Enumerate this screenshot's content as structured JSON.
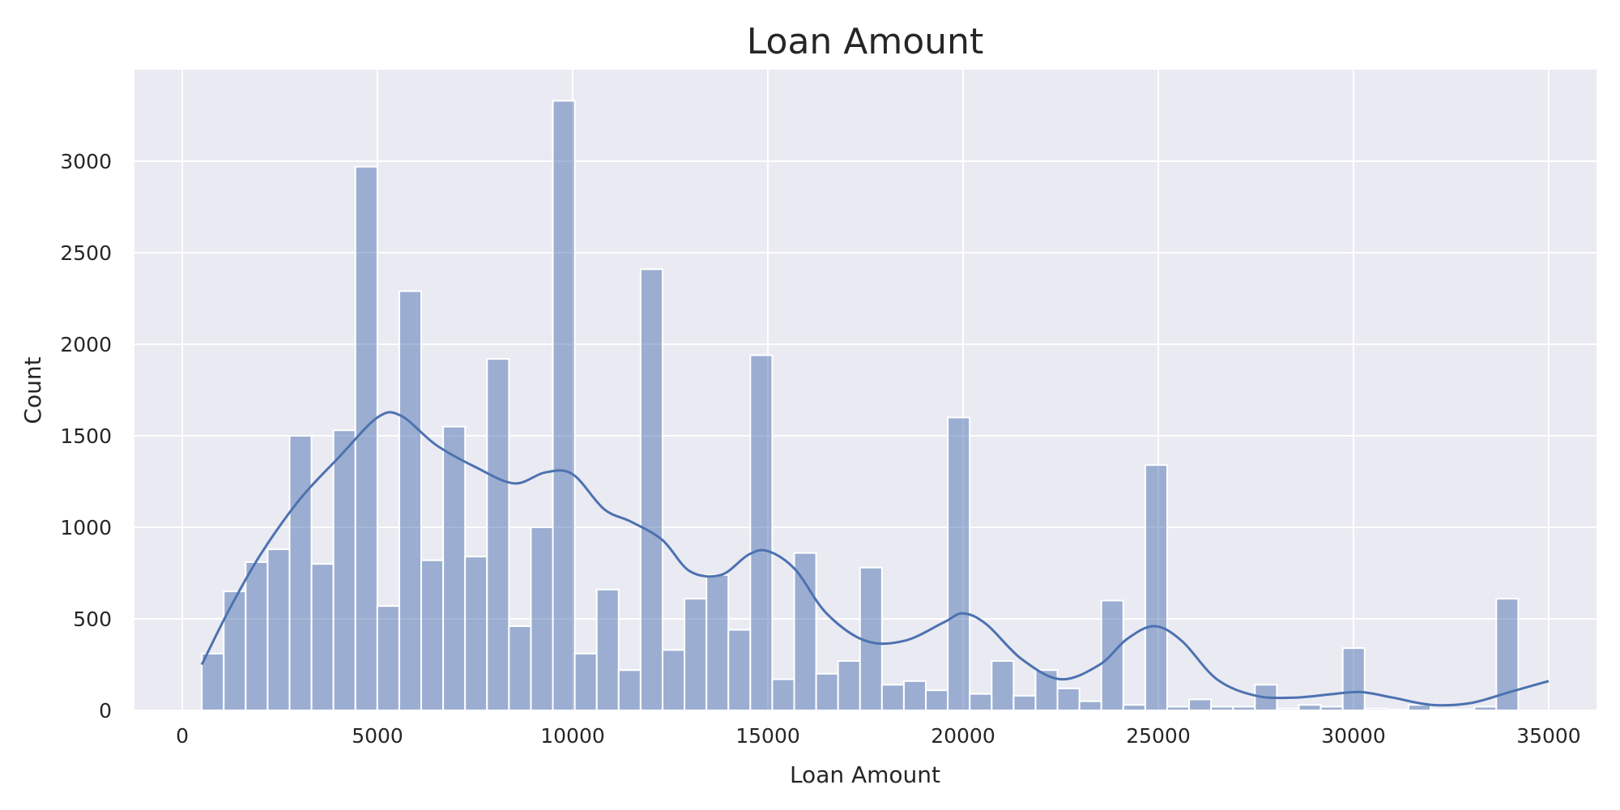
{
  "chart_data": {
    "type": "histogram",
    "title": "Loan Amount",
    "xlabel": "Loan Amount",
    "ylabel": "Count",
    "xlim": [
      -1225,
      36225
    ],
    "ylim": [
      0,
      3500
    ],
    "xticks": [
      0,
      5000,
      10000,
      15000,
      20000,
      25000,
      30000,
      35000
    ],
    "yticks": [
      0,
      500,
      1000,
      1500,
      2000,
      2500,
      3000
    ],
    "bin_start": 500,
    "bin_width": 562,
    "counts": [
      310,
      650,
      810,
      880,
      1500,
      800,
      1530,
      2970,
      570,
      2290,
      820,
      1550,
      840,
      1920,
      460,
      1000,
      3330,
      310,
      660,
      220,
      2410,
      330,
      610,
      740,
      440,
      1940,
      170,
      860,
      200,
      270,
      780,
      140,
      160,
      110,
      1600,
      90,
      270,
      80,
      220,
      120,
      50,
      600,
      30,
      1340,
      20,
      60,
      20,
      20,
      140,
      10,
      30,
      20,
      340,
      10,
      5,
      30,
      5,
      5,
      20,
      610
    ],
    "kde": {
      "x": [
        500,
        1200,
        2000,
        3000,
        4000,
        5000,
        5600,
        6500,
        7500,
        8500,
        9300,
        10000,
        10800,
        11500,
        12300,
        13000,
        13800,
        14500,
        15000,
        15700,
        16500,
        17500,
        18500,
        19500,
        20000,
        20600,
        21500,
        22500,
        23500,
        24200,
        24900,
        25600,
        26500,
        27500,
        28500,
        29500,
        30200,
        31000,
        32000,
        33000,
        34000,
        35000
      ],
      "y": [
        250,
        550,
        850,
        1150,
        1380,
        1600,
        1610,
        1450,
        1330,
        1240,
        1300,
        1290,
        1100,
        1030,
        930,
        760,
        740,
        850,
        870,
        770,
        530,
        380,
        380,
        480,
        530,
        470,
        280,
        170,
        250,
        390,
        460,
        380,
        170,
        80,
        70,
        90,
        100,
        70,
        30,
        40,
        100,
        160
      ]
    }
  }
}
